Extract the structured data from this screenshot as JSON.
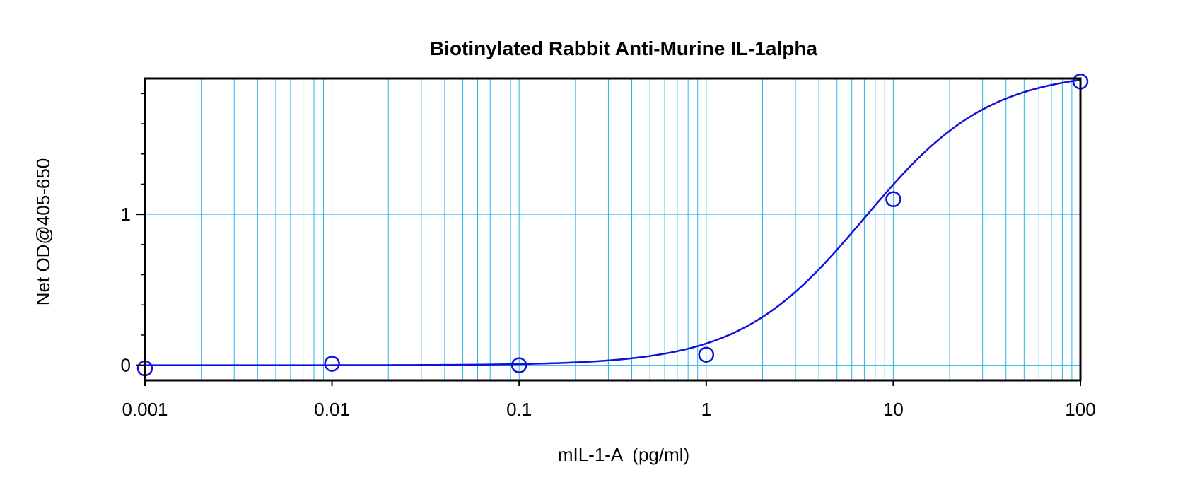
{
  "chart_data": {
    "type": "scatter",
    "title": "Biotinylated Rabbit Anti-Murine IL-1alpha",
    "xlabel": "mIL-1-A  (pg/ml)",
    "ylabel": "Net OD@405-650",
    "x_scale": "log",
    "xlim": [
      0.001,
      100
    ],
    "ylim": [
      -0.1,
      1.9
    ],
    "x_ticks": [
      0.001,
      0.01,
      0.1,
      1,
      10,
      100
    ],
    "x_tick_labels": [
      "0.001",
      "0.01",
      "0.1",
      "1",
      "10",
      "100"
    ],
    "y_ticks": [
      0,
      1
    ],
    "y_tick_labels": [
      "0",
      "1"
    ],
    "grid": true,
    "legend": "none",
    "series": [
      {
        "x": [
          0.001,
          0.01,
          0.1,
          1,
          10,
          100
        ],
        "y": [
          -0.02,
          0.01,
          0.0,
          0.07,
          1.1,
          1.88
        ],
        "marker": "open-circle",
        "fit": "4-parameter logistic curve"
      }
    ],
    "colors": {
      "grid": "#2ab6ea",
      "series": "#1010dd",
      "axes": "#000000"
    }
  }
}
